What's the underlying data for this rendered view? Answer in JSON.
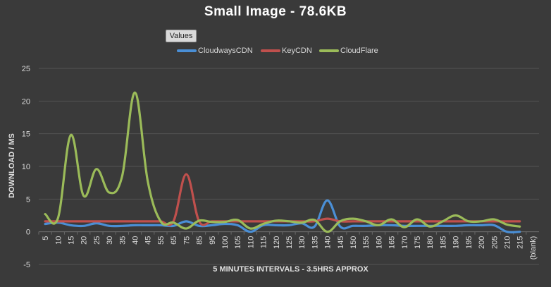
{
  "colors": {
    "background": "#3a3a3a",
    "gridline": "#545454",
    "axis_text": "#d9d9d9",
    "cloudways": "#4a8fd6",
    "keycdn": "#c0504d",
    "cloudflare": "#9bbb59"
  },
  "values_button_label": "Values",
  "chart_data": {
    "type": "line",
    "title": "Small Image - 78.6KB",
    "xlabel": "5 MINUTES INTERVALS - 3.5HRS APPROX",
    "ylabel": "DOWNLOAD / MS",
    "ylim": [
      -5,
      25
    ],
    "yticks": [
      -5,
      0,
      5,
      10,
      15,
      20,
      25
    ],
    "grid": true,
    "legend_position": "top",
    "smooth": true,
    "categories": [
      "5",
      "10",
      "15",
      "20",
      "25",
      "30",
      "35",
      "40",
      "45",
      "55",
      "65",
      "75",
      "85",
      "95",
      "100",
      "105",
      "110",
      "115",
      "120",
      "125",
      "130",
      "135",
      "140",
      "145",
      "150",
      "155",
      "160",
      "165",
      "170",
      "175",
      "180",
      "185",
      "190",
      "195",
      "200",
      "205",
      "210",
      "215",
      "(blank)"
    ],
    "series": [
      {
        "name": "CloudwaysCDN",
        "color_key": "cloudways",
        "values": [
          1.2,
          1.4,
          1.0,
          0.9,
          1.3,
          0.9,
          0.9,
          1.0,
          1.0,
          1.0,
          0.9,
          1.6,
          0.9,
          1.0,
          1.2,
          1.0,
          0.0,
          1.0,
          1.0,
          1.0,
          1.3,
          0.8,
          4.8,
          0.8,
          0.9,
          0.9,
          1.0,
          1.0,
          0.9,
          0.9,
          0.9,
          0.9,
          0.9,
          1.0,
          1.0,
          1.0,
          0.0,
          0.0,
          null
        ]
      },
      {
        "name": "KeyCDN",
        "color_key": "keycdn",
        "values": [
          1.6,
          1.6,
          1.6,
          1.6,
          1.6,
          1.6,
          1.6,
          1.6,
          1.6,
          1.6,
          1.6,
          8.8,
          1.6,
          1.6,
          1.6,
          1.6,
          1.6,
          1.6,
          1.6,
          1.6,
          1.6,
          1.6,
          2.0,
          1.6,
          1.6,
          1.6,
          1.6,
          1.6,
          1.6,
          1.6,
          1.6,
          1.6,
          1.6,
          1.6,
          1.6,
          1.6,
          1.6,
          1.6,
          null
        ]
      },
      {
        "name": "CloudFlare",
        "color_key": "cloudflare",
        "values": [
          2.7,
          2.1,
          14.8,
          5.5,
          9.6,
          6.0,
          8.5,
          21.3,
          7.7,
          1.6,
          1.4,
          0.5,
          1.7,
          1.5,
          1.5,
          1.8,
          0.5,
          1.2,
          1.7,
          1.6,
          1.4,
          1.8,
          0.0,
          1.6,
          2.0,
          1.6,
          1.0,
          1.9,
          0.7,
          1.9,
          0.8,
          1.6,
          2.5,
          1.6,
          1.6,
          1.9,
          1.1,
          0.8,
          null
        ]
      }
    ]
  }
}
